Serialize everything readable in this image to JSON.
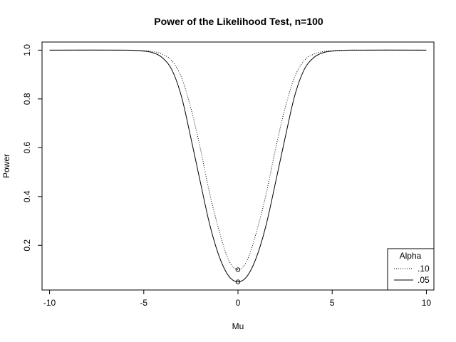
{
  "chart_data": {
    "type": "line",
    "title": "Power of the Likelihood Test, n=100",
    "xlabel": "Mu",
    "ylabel": "Power",
    "xlim": [
      -10.4,
      10.4
    ],
    "ylim": [
      0.0168,
      1.0332
    ],
    "xticks": [
      -10,
      -5,
      0,
      5,
      10
    ],
    "xtick_labels": [
      "-10",
      "-5",
      "0",
      "5",
      "10"
    ],
    "yticks": [
      0.2,
      0.4,
      0.6,
      0.8,
      1.0
    ],
    "ytick_labels": [
      "0.2",
      "0.4",
      "0.6",
      "0.8",
      "1.0"
    ],
    "grid": false,
    "legend": {
      "title": "Alpha",
      "placement": "bottom-right",
      "entries": [
        {
          "label": ".10",
          "line": "dotted"
        },
        {
          "label": ".05",
          "line": "solid"
        }
      ]
    },
    "series": [
      {
        "label": ".10",
        "line": "dotted",
        "x": [
          -10,
          -6,
          -5,
          -4.5,
          -4,
          -3.5,
          -3,
          -2.5,
          -2,
          -1.5,
          -1,
          -0.5,
          0,
          0.5,
          1,
          1.5,
          2,
          2.5,
          3,
          3.5,
          4,
          4.5,
          5,
          6,
          10
        ],
        "y": [
          1.0,
          1.0,
          0.998,
          0.994,
          0.983,
          0.956,
          0.888,
          0.762,
          0.598,
          0.412,
          0.26,
          0.14,
          0.1,
          0.14,
          0.26,
          0.412,
          0.598,
          0.762,
          0.888,
          0.956,
          0.983,
          0.994,
          0.998,
          1.0,
          1.0
        ]
      },
      {
        "label": ".05",
        "line": "solid",
        "x": [
          -10,
          -6,
          -5,
          -4.5,
          -4,
          -3.5,
          -3,
          -2.5,
          -2,
          -1.5,
          -1,
          -0.5,
          0,
          0.5,
          1,
          1.5,
          2,
          2.5,
          3,
          3.5,
          4,
          4.5,
          5,
          6,
          10
        ],
        "y": [
          1.0,
          1.0,
          0.996,
          0.989,
          0.968,
          0.918,
          0.81,
          0.64,
          0.46,
          0.285,
          0.155,
          0.075,
          0.05,
          0.075,
          0.155,
          0.285,
          0.46,
          0.64,
          0.81,
          0.918,
          0.968,
          0.989,
          0.996,
          1.0,
          1.0
        ]
      }
    ],
    "points": [
      {
        "x": 0,
        "y": 0.1,
        "marker": "open-circle"
      },
      {
        "x": 0,
        "y": 0.05,
        "marker": "open-circle"
      }
    ]
  }
}
